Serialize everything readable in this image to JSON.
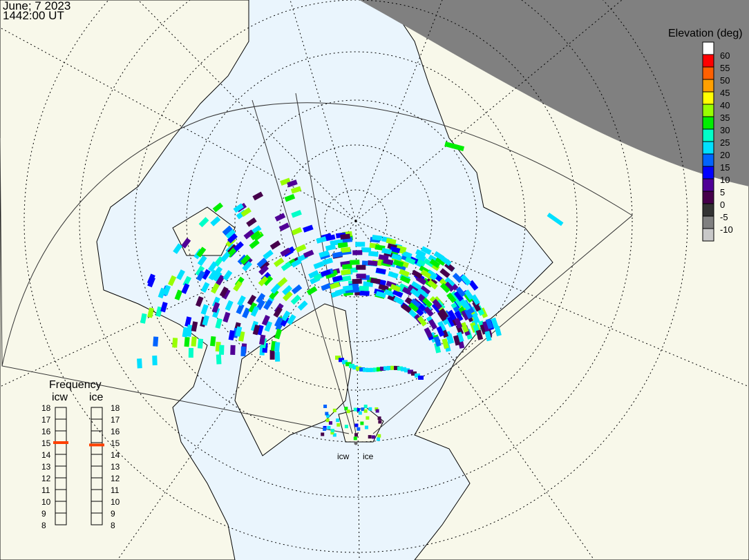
{
  "header": {
    "date": "June; 7 2023",
    "time": "1442:00 UT"
  },
  "legend": {
    "title": "Elevation (deg)",
    "ticks": [
      "60",
      "55",
      "50",
      "45",
      "40",
      "35",
      "30",
      "25",
      "20",
      "15",
      "10",
      "5",
      "0",
      "-5",
      "-10"
    ],
    "colors": [
      "#ffffff",
      "#ff0000",
      "#ff6000",
      "#ffa000",
      "#ffff00",
      "#98ff00",
      "#00ee00",
      "#00ffc8",
      "#00e0ff",
      "#0064ff",
      "#0000ff",
      "#500096",
      "#46004b",
      "#333333",
      "#808080",
      "#c8c8c8"
    ]
  },
  "frequency": {
    "title": "Frequency",
    "scale": [
      "18",
      "17",
      "16",
      "15",
      "14",
      "13",
      "12",
      "11",
      "10",
      "9",
      "8"
    ],
    "radars": [
      {
        "name": "icw",
        "value_mhz": 15.0
      },
      {
        "name": "ice",
        "value_mhz": 14.8
      }
    ],
    "marker_color": "#ff4000"
  },
  "radars": {
    "labels": [
      "icw",
      "ice"
    ]
  },
  "colors": {
    "ocean": "#eaf5fd",
    "land": "#f8f8ea",
    "night": "#808080"
  }
}
